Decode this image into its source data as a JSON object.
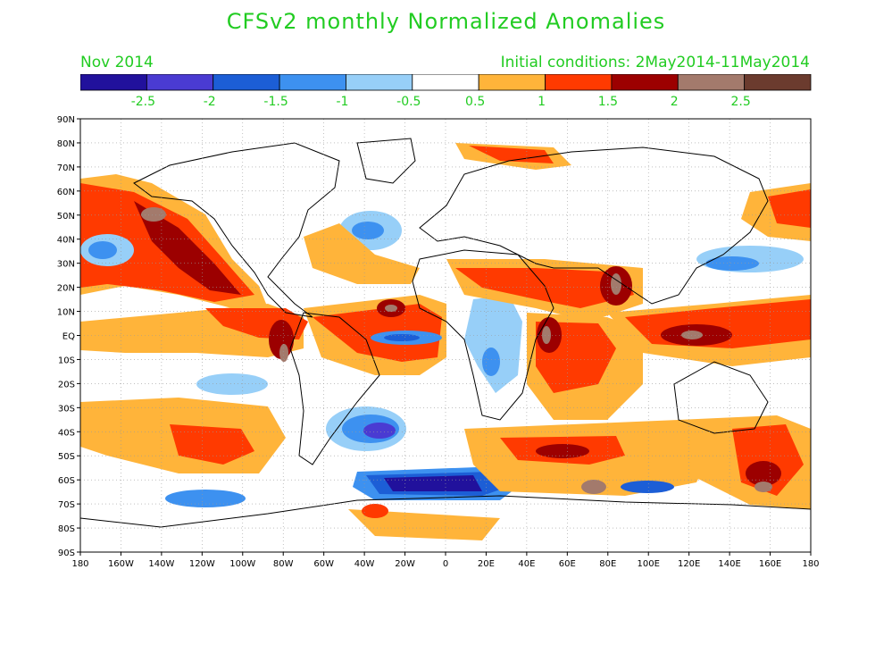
{
  "title": "CFSv2 monthly Normalized Anomalies",
  "subtitle_left": "Nov 2014",
  "subtitle_right": "Initial conditions: 2May2014-11May2014",
  "colors": {
    "text": "#22cc22",
    "land_outline": "#000000",
    "grid": "#9a9a9a"
  },
  "colorbar": {
    "colors": [
      "#21119c",
      "#4a3bd2",
      "#1c5ed6",
      "#3d91f0",
      "#97cff8",
      "#ffffff",
      "#ffb43a",
      "#ff3a00",
      "#9c0000",
      "#a37a6c",
      "#6b3b2e"
    ],
    "labels": [
      "-2.5",
      "-2",
      "-1.5",
      "-1",
      "-0.5",
      "0.5",
      "1",
      "1.5",
      "2",
      "2.5"
    ]
  },
  "map": {
    "lat_labels": [
      "90N",
      "80N",
      "70N",
      "60N",
      "50N",
      "40N",
      "30N",
      "20N",
      "10N",
      "EQ",
      "10S",
      "20S",
      "30S",
      "40S",
      "50S",
      "60S",
      "70S",
      "80S",
      "90S"
    ],
    "lon_labels": [
      "180",
      "160W",
      "140W",
      "120W",
      "100W",
      "80W",
      "60W",
      "40W",
      "20W",
      "0",
      "20E",
      "40E",
      "60E",
      "80E",
      "100E",
      "120E",
      "140E",
      "160E",
      "180"
    ]
  }
}
